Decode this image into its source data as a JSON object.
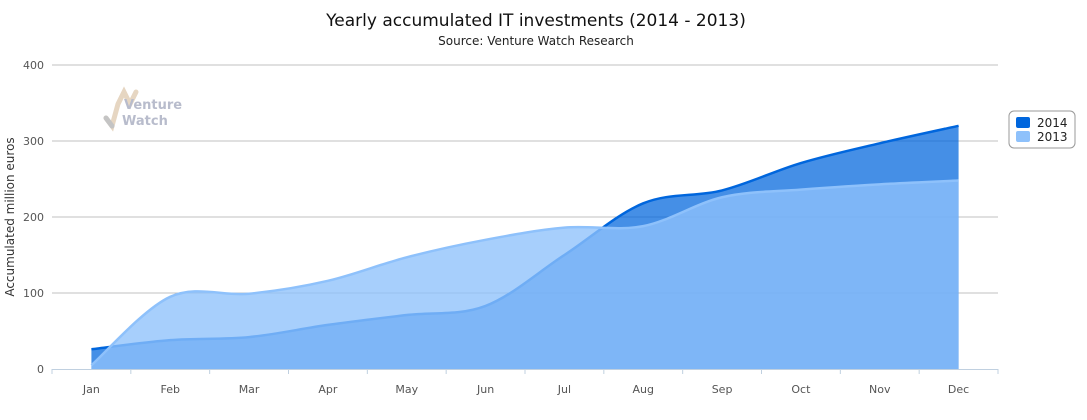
{
  "chart_data": {
    "type": "area",
    "title": "Yearly accumulated IT investments (2014 - 2013)",
    "subtitle": "Source: Venture Watch Research",
    "xlabel": "",
    "ylabel": "Accumulated million euros",
    "categories": [
      "Jan",
      "Feb",
      "Mar",
      "Apr",
      "May",
      "Jun",
      "Jul",
      "Aug",
      "Sep",
      "Oct",
      "Nov",
      "Dec"
    ],
    "ylim": [
      0,
      400
    ],
    "yticks": [
      0,
      100,
      200,
      300,
      400
    ],
    "grid": true,
    "legend_placement": "right",
    "series": [
      {
        "name": "2014",
        "color": "#0066dd",
        "values": [
          26,
          38,
          42,
          58,
          71,
          83,
          150,
          218,
          235,
          271,
          297,
          320
        ]
      },
      {
        "name": "2013",
        "color": "#8ec1fb",
        "values": [
          5,
          95,
          99,
          116,
          147,
          170,
          186,
          188,
          226,
          236,
          243,
          248
        ]
      }
    ],
    "watermark": "Venture Watch"
  }
}
